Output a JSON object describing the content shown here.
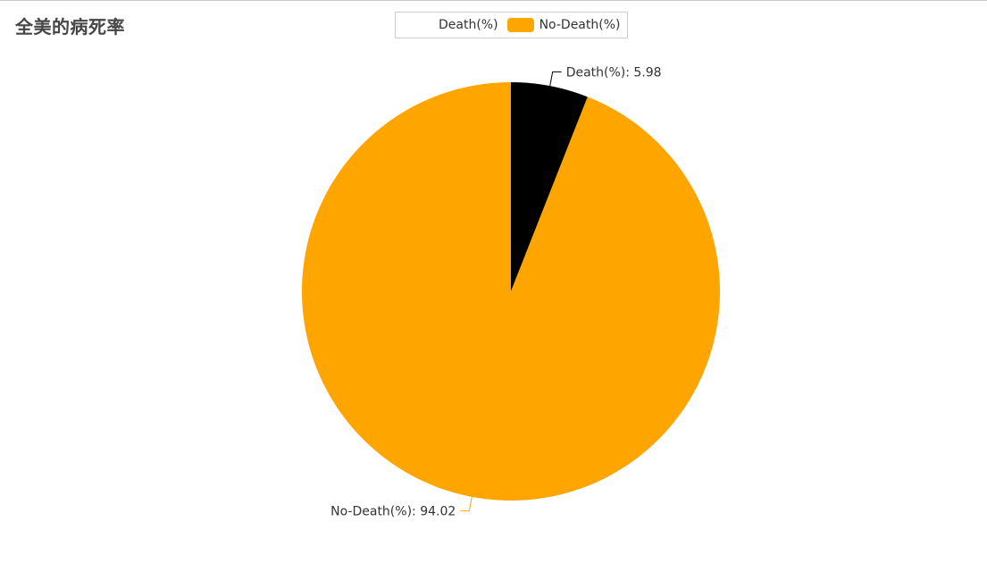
{
  "chart_data": {
    "type": "pie",
    "title": "全美的病死率",
    "legend": {
      "position": "top-center",
      "entries": [
        {
          "name": "Death(%)",
          "color": "#ffffff"
        },
        {
          "name": "No-Death(%)",
          "color": "#ffa500"
        }
      ]
    },
    "series": [
      {
        "name": "Death(%)",
        "value": 5.98,
        "color": "#000000",
        "label": "Death(%): 5.98"
      },
      {
        "name": "No-Death(%)",
        "value": 94.02,
        "color": "#ffa500",
        "label": "No-Death(%): 94.02"
      }
    ]
  }
}
